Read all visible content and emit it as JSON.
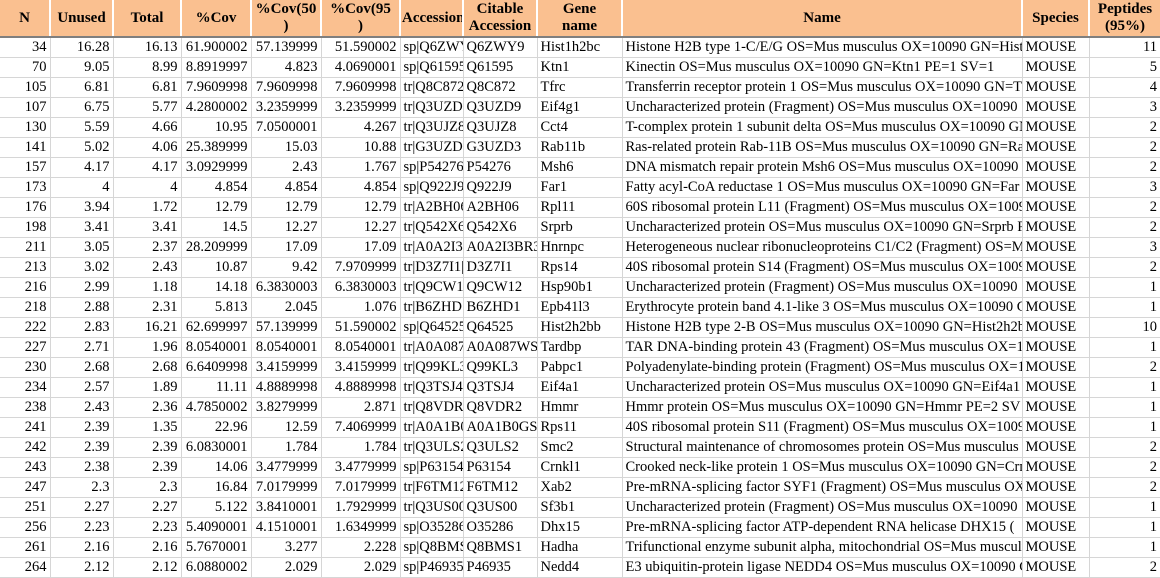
{
  "colors": {
    "header_background": "#FAC090",
    "header_divider": "#FFFFFF",
    "header_bottom_border": "#7F7F7F",
    "grid_line": "#D6D6D6",
    "cell_background": "#FFFFFF",
    "text": "#000000"
  },
  "table": {
    "columns": [
      "N",
      "Unused",
      "Total",
      "%Cov",
      "%Cov(50\n)",
      "%Cov(95\n)",
      "Accession",
      "Citable\nAccession",
      "Gene\nname",
      "Name",
      "Species",
      "Peptides\n(95%)"
    ],
    "rows": [
      [
        "34",
        "16.28",
        "16.13",
        "61.900002",
        "57.139999",
        "51.590002",
        "sp|Q6ZWY9",
        "Q6ZWY9",
        "Hist1h2bc",
        "Histone H2B type 1-C/E/G OS=Mus musculus OX=10090 GN=Hist",
        "MOUSE",
        "11"
      ],
      [
        "70",
        "9.05",
        "8.99",
        "8.8919997",
        "4.823",
        "4.0690001",
        "sp|Q61595|K",
        "Q61595",
        "Ktn1",
        "Kinectin OS=Mus musculus OX=10090 GN=Ktn1 PE=1 SV=1",
        "MOUSE",
        "5"
      ],
      [
        "105",
        "6.81",
        "6.81",
        "7.9609998",
        "7.9609998",
        "7.9609998",
        "tr|Q8C872|Q",
        "Q8C872",
        "Tfrc",
        "Transferrin receptor protein 1 OS=Mus musculus OX=10090 GN=T",
        "MOUSE",
        "4"
      ],
      [
        "107",
        "6.75",
        "5.77",
        "4.2800002",
        "3.2359999",
        "3.2359999",
        "tr|Q3UZD9|Q",
        "Q3UZD9",
        "Eif4g1",
        "Uncharacterized protein (Fragment) OS=Mus musculus OX=10090",
        "MOUSE",
        "3"
      ],
      [
        "130",
        "5.59",
        "4.66",
        "10.95",
        "7.0500001",
        "4.267",
        "tr|Q3UJZ8|Q",
        "Q3UJZ8",
        "Cct4",
        "T-complex protein 1 subunit delta OS=Mus musculus OX=10090 GN",
        "MOUSE",
        "2"
      ],
      [
        "141",
        "5.02",
        "4.06",
        "25.389999",
        "15.03",
        "10.88",
        "tr|G3UZD3|G",
        "G3UZD3",
        "Rab11b",
        "Ras-related protein Rab-11B OS=Mus musculus OX=10090 GN=Ra",
        "MOUSE",
        "2"
      ],
      [
        "157",
        "4.17",
        "4.17",
        "3.0929999",
        "2.43",
        "1.767",
        "sp|P54276|M",
        "P54276",
        "Msh6",
        "DNA mismatch repair protein Msh6 OS=Mus musculus OX=10090",
        "MOUSE",
        "2"
      ],
      [
        "173",
        "4",
        "4",
        "4.854",
        "4.854",
        "4.854",
        "sp|Q922J9|F",
        "Q922J9",
        "Far1",
        "Fatty acyl-CoA reductase 1 OS=Mus musculus OX=10090 GN=Far",
        "MOUSE",
        "3"
      ],
      [
        "176",
        "3.94",
        "1.72",
        "12.79",
        "12.79",
        "12.79",
        "tr|A2BH06|A",
        "A2BH06",
        "Rpl11",
        "60S ribosomal protein L11 (Fragment) OS=Mus musculus OX=1009",
        "MOUSE",
        "2"
      ],
      [
        "198",
        "3.41",
        "3.41",
        "14.5",
        "12.27",
        "12.27",
        "tr|Q542X6|Q",
        "Q542X6",
        "Srprb",
        "Uncharacterized protein OS=Mus musculus OX=10090 GN=Srprb P",
        "MOUSE",
        "2"
      ],
      [
        "211",
        "3.05",
        "2.37",
        "28.209999",
        "17.09",
        "17.09",
        "tr|A0A2I3BR",
        "A0A2I3BR3",
        "Hnrnpc",
        "Heterogeneous nuclear ribonucleoproteins C1/C2 (Fragment) OS=M",
        "MOUSE",
        "3"
      ],
      [
        "213",
        "3.02",
        "2.43",
        "10.87",
        "9.42",
        "7.9709999",
        "tr|D3Z7I1|D",
        "D3Z7I1",
        "Rps14",
        "40S ribosomal protein S14 (Fragment) OS=Mus musculus OX=1009",
        "MOUSE",
        "2"
      ],
      [
        "216",
        "2.99",
        "1.18",
        "14.18",
        "6.3830003",
        "6.3830003",
        "tr|Q9CW12|",
        "Q9CW12",
        "Hsp90b1",
        "Uncharacterized protein (Fragment) OS=Mus musculus OX=10090",
        "MOUSE",
        "1"
      ],
      [
        "218",
        "2.88",
        "2.31",
        "5.813",
        "2.045",
        "1.076",
        "tr|B6ZHD1|B",
        "B6ZHD1",
        "Epb41l3",
        "Erythrocyte protein band 4.1-like 3 OS=Mus musculus OX=10090 G",
        "MOUSE",
        "1"
      ],
      [
        "222",
        "2.83",
        "16.21",
        "62.699997",
        "57.139999",
        "51.590002",
        "sp|Q64525|H",
        "Q64525",
        "Hist2h2bb",
        "Histone H2B type 2-B OS=Mus musculus OX=10090 GN=Hist2h2b",
        "MOUSE",
        "10"
      ],
      [
        "227",
        "2.71",
        "1.96",
        "8.0540001",
        "8.0540001",
        "8.0540001",
        "tr|A0A087W",
        "A0A087WS",
        "Tardbp",
        "TAR DNA-binding protein 43 (Fragment) OS=Mus musculus OX=1",
        "MOUSE",
        "1"
      ],
      [
        "230",
        "2.68",
        "2.68",
        "6.6409998",
        "3.4159999",
        "3.4159999",
        "tr|Q99KL3|Q",
        "Q99KL3",
        "Pabpc1",
        "Polyadenylate-binding protein (Fragment) OS=Mus musculus OX=1",
        "MOUSE",
        "2"
      ],
      [
        "234",
        "2.57",
        "1.89",
        "11.11",
        "4.8889998",
        "4.8889998",
        "tr|Q3TSJ4|Q",
        "Q3TSJ4",
        "Eif4a1",
        "Uncharacterized protein OS=Mus musculus OX=10090 GN=Eif4a1",
        "MOUSE",
        "1"
      ],
      [
        "238",
        "2.43",
        "2.36",
        "4.7850002",
        "3.8279999",
        "2.871",
        "tr|Q8VDR2|",
        "Q8VDR2",
        "Hmmr",
        "Hmmr protein OS=Mus musculus OX=10090 GN=Hmmr PE=2 SV",
        "MOUSE",
        "1"
      ],
      [
        "241",
        "2.39",
        "1.35",
        "22.96",
        "12.59",
        "7.4069999",
        "tr|A0A1B0G",
        "A0A1B0GS",
        "Rps11",
        "40S ribosomal protein S11 (Fragment) OS=Mus musculus OX=1009",
        "MOUSE",
        "1"
      ],
      [
        "242",
        "2.39",
        "2.39",
        "6.0830001",
        "1.784",
        "1.784",
        "tr|Q3ULS2|Q",
        "Q3ULS2",
        "Smc2",
        "Structural maintenance of chromosomes protein OS=Mus musculus",
        "MOUSE",
        "2"
      ],
      [
        "243",
        "2.38",
        "2.39",
        "14.06",
        "3.4779999",
        "3.4779999",
        "sp|P63154|C",
        "P63154",
        "Crnkl1",
        "Crooked neck-like protein 1 OS=Mus musculus OX=10090 GN=Crn",
        "MOUSE",
        "2"
      ],
      [
        "247",
        "2.3",
        "2.3",
        "16.84",
        "7.0179999",
        "7.0179999",
        "tr|F6TM12|F",
        "F6TM12",
        "Xab2",
        "Pre-mRNA-splicing factor SYF1 (Fragment) OS=Mus musculus OX",
        "MOUSE",
        "2"
      ],
      [
        "251",
        "2.27",
        "2.27",
        "5.122",
        "3.8410001",
        "1.7929999",
        "tr|Q3US00|Q",
        "Q3US00",
        "Sf3b1",
        "Uncharacterized protein (Fragment) OS=Mus musculus OX=10090",
        "MOUSE",
        "1"
      ],
      [
        "256",
        "2.23",
        "2.23",
        "5.4090001",
        "4.1510001",
        "1.6349999",
        "sp|O35286|D",
        "O35286",
        "Dhx15",
        "Pre-mRNA-splicing factor ATP-dependent RNA helicase DHX15 (",
        "MOUSE",
        "1"
      ],
      [
        "261",
        "2.16",
        "2.16",
        "5.7670001",
        "3.277",
        "2.228",
        "sp|Q8BMS1|",
        "Q8BMS1",
        "Hadha",
        "Trifunctional enzyme subunit alpha, mitochondrial OS=Mus musculu",
        "MOUSE",
        "1"
      ],
      [
        "264",
        "2.12",
        "2.12",
        "6.0880002",
        "2.029",
        "2.029",
        "sp|P46935|N",
        "P46935",
        "Nedd4",
        "E3 ubiquitin-protein ligase NEDD4 OS=Mus musculus OX=10090 G",
        "MOUSE",
        "2"
      ]
    ]
  }
}
